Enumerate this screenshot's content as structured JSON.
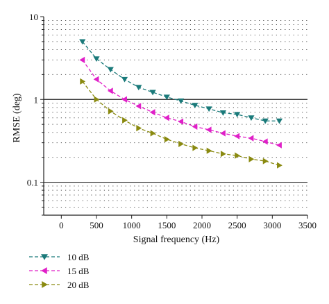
{
  "chart_data": {
    "type": "line",
    "title": "",
    "xlabel": "Signal frequency (Hz)",
    "ylabel": "RMSE (deg)",
    "xlim": [
      -250,
      3500
    ],
    "ylim": [
      0.04,
      10
    ],
    "yscale": "log",
    "x_ticks": [
      0,
      500,
      1000,
      1500,
      2000,
      2500,
      3000,
      3500
    ],
    "x_tick_labels": [
      "0",
      "500",
      "1000",
      "1500",
      "2000",
      "2500",
      "3000",
      "3500"
    ],
    "y_ticks": [
      0.1,
      1,
      10
    ],
    "y_tick_labels": [
      "0.1",
      "1",
      "10"
    ],
    "grid": "dotted horizontal minor lines, solid lines at 0.1 and 1",
    "legend": "bottom-left, below plot",
    "x": [
      300,
      500,
      700,
      900,
      1100,
      1300,
      1500,
      1700,
      1900,
      2100,
      2300,
      2500,
      2700,
      2900,
      3100
    ],
    "series": [
      {
        "name": "10 dB",
        "color": "#1a7a7a",
        "marker": "triangle-down",
        "values": [
          5.0,
          3.1,
          2.3,
          1.75,
          1.4,
          1.22,
          1.07,
          0.96,
          0.85,
          0.77,
          0.69,
          0.66,
          0.6,
          0.55,
          0.55
        ]
      },
      {
        "name": "15 dB",
        "color": "#e020c8",
        "marker": "triangle-left",
        "values": [
          3.0,
          1.75,
          1.27,
          1.0,
          0.83,
          0.7,
          0.6,
          0.54,
          0.47,
          0.43,
          0.39,
          0.36,
          0.34,
          0.31,
          0.28
        ]
      },
      {
        "name": "20 dB",
        "color": "#8a8a10",
        "marker": "triangle-right",
        "values": [
          1.65,
          1.0,
          0.72,
          0.56,
          0.45,
          0.39,
          0.33,
          0.29,
          0.26,
          0.24,
          0.22,
          0.21,
          0.19,
          0.18,
          0.16
        ]
      }
    ]
  }
}
